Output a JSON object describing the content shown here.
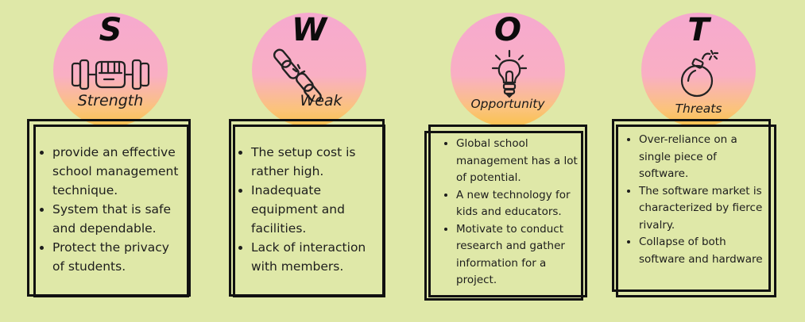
{
  "quadrants": [
    {
      "letter": "S",
      "label": "Strength",
      "icon": "dumbbell-fist-icon",
      "points": [
        "provide an effective school management technique.",
        "System that is safe and dependable.",
        "Protect the privacy of students."
      ]
    },
    {
      "letter": "W",
      "label": "Weak",
      "icon": "broken-chain-icon",
      "points": [
        "The setup cost is rather high.",
        "Inadequate equipment and facilities.",
        "Lack of interaction with members."
      ]
    },
    {
      "letter": "O",
      "label": "Opportunity",
      "icon": "light-bulb-icon",
      "points": [
        "Global school management has a lot of potential.",
        "A new technology for kids and educators.",
        "Motivate to conduct research and gather information for a project."
      ]
    },
    {
      "letter": "T",
      "label": "Threats",
      "icon": "bomb-icon",
      "points": [
        "Over-reliance on a single piece of software.",
        "The software market is characterized by fierce rivalry.",
        "Collapse of both software and hardware"
      ]
    }
  ],
  "colors": {
    "background": "#dfe8a8",
    "circle_top": "#f6a9cf",
    "circle_bottom": "#f9c14c",
    "frame": "#111111"
  }
}
